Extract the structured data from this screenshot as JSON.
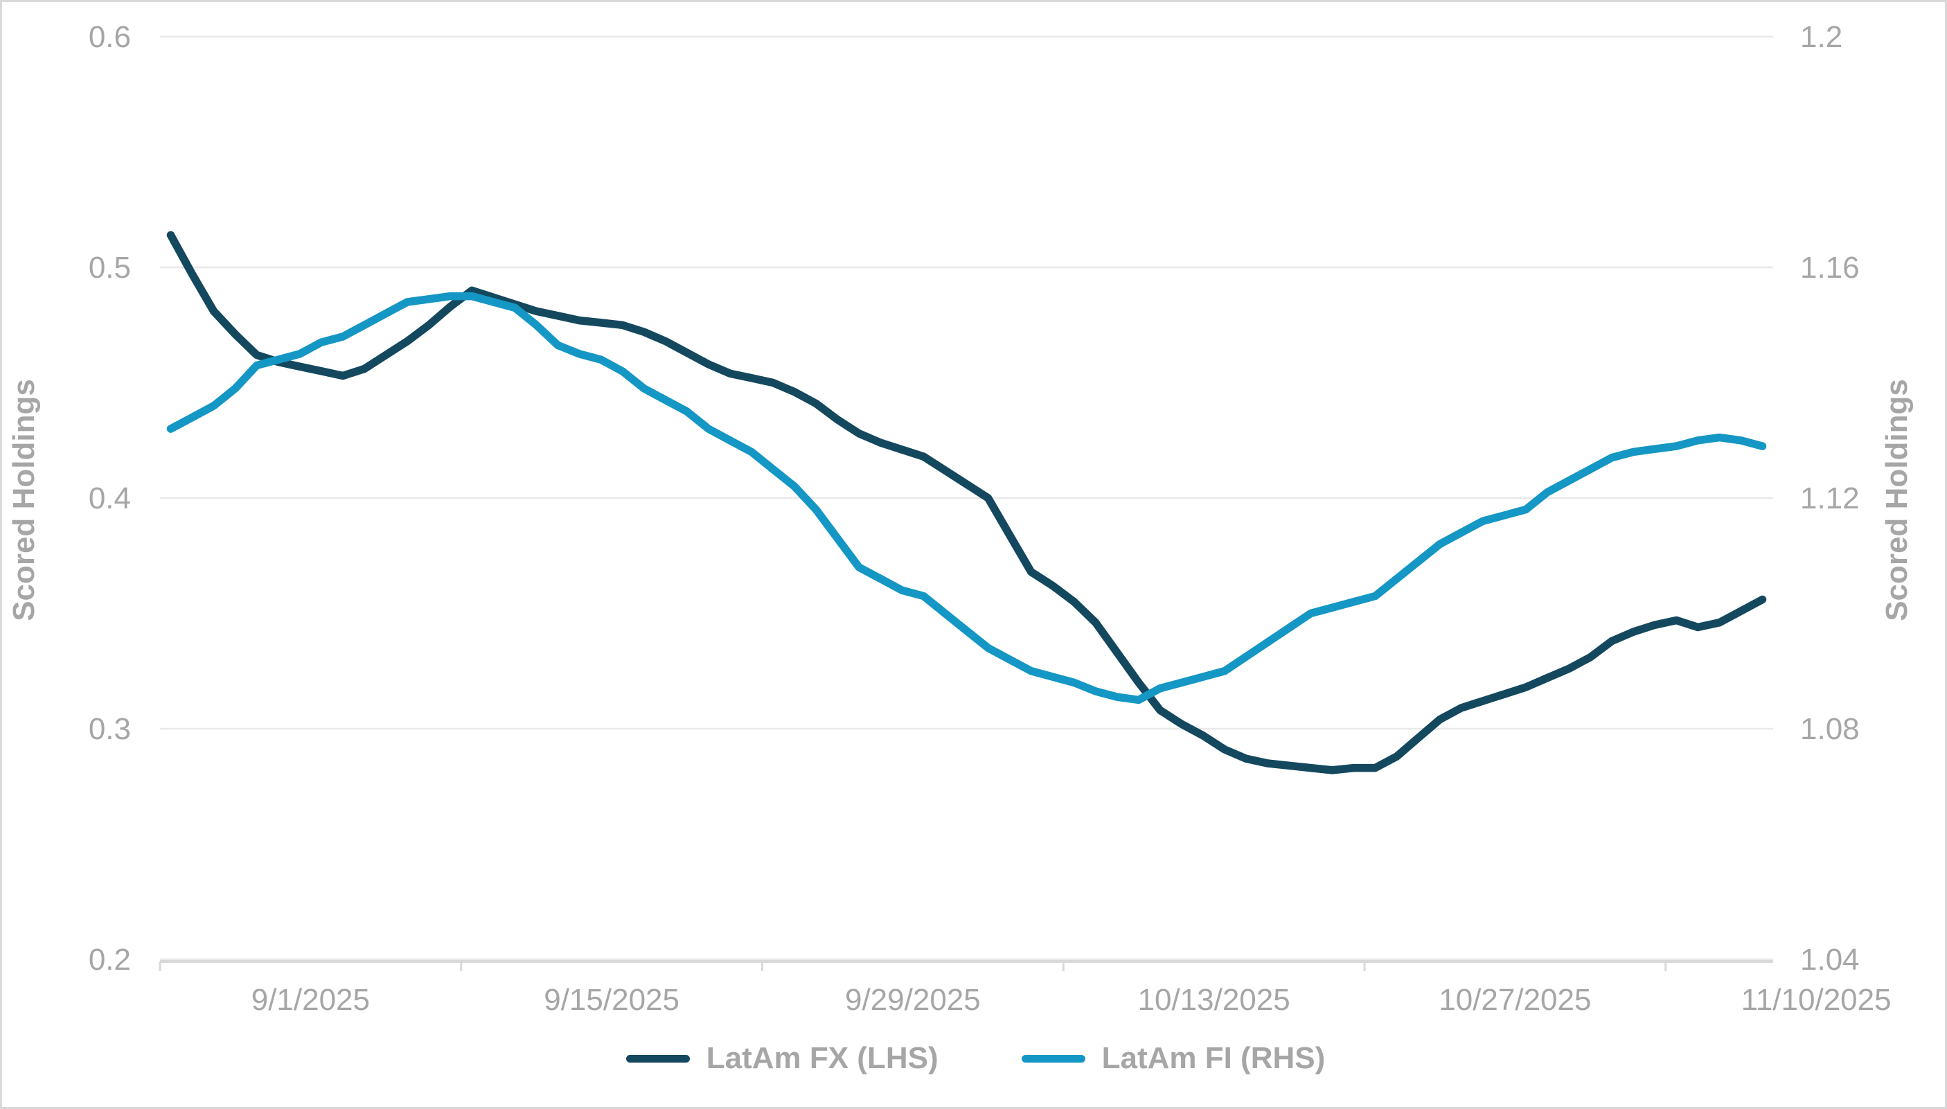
{
  "chart_data": {
    "type": "line",
    "title": "",
    "x": [
      "9/1/2025",
      "9/2/2025",
      "9/3/2025",
      "9/4/2025",
      "9/5/2025",
      "9/6/2025",
      "9/7/2025",
      "9/8/2025",
      "9/9/2025",
      "9/10/2025",
      "9/11/2025",
      "9/12/2025",
      "9/13/2025",
      "9/14/2025",
      "9/15/2025",
      "9/16/2025",
      "9/17/2025",
      "9/18/2025",
      "9/19/2025",
      "9/20/2025",
      "9/21/2025",
      "9/22/2025",
      "9/23/2025",
      "9/24/2025",
      "9/25/2025",
      "9/26/2025",
      "9/27/2025",
      "9/28/2025",
      "9/29/2025",
      "9/30/2025",
      "10/1/2025",
      "10/2/2025",
      "10/3/2025",
      "10/4/2025",
      "10/5/2025",
      "10/6/2025",
      "10/7/2025",
      "10/8/2025",
      "10/9/2025",
      "10/10/2025",
      "10/11/2025",
      "10/12/2025",
      "10/13/2025",
      "10/14/2025",
      "10/15/2025",
      "10/16/2025",
      "10/17/2025",
      "10/18/2025",
      "10/19/2025",
      "10/20/2025",
      "10/21/2025",
      "10/22/2025",
      "10/23/2025",
      "10/24/2025",
      "10/25/2025",
      "10/26/2025",
      "10/27/2025",
      "10/28/2025",
      "10/29/2025",
      "10/30/2025",
      "10/31/2025",
      "11/1/2025",
      "11/2/2025",
      "11/3/2025",
      "11/4/2025",
      "11/5/2025",
      "11/6/2025",
      "11/7/2025",
      "11/8/2025",
      "11/9/2025",
      "11/10/2025",
      "11/11/2025",
      "11/12/2025",
      "11/13/2025",
      "11/14/2025"
    ],
    "x_tick_labels": [
      "9/1/2025",
      "9/15/2025",
      "9/29/2025",
      "10/13/2025",
      "10/27/2025",
      "11/10/2025"
    ],
    "x_tick_day_index": [
      0,
      14,
      28,
      42,
      56,
      70
    ],
    "series": [
      {
        "name": "LatAm FX (LHS)",
        "axis": "left",
        "color": "#14485e",
        "values": [
          0.514,
          0.497,
          0.481,
          0.471,
          0.462,
          0.459,
          0.457,
          0.455,
          0.453,
          0.456,
          0.462,
          0.468,
          0.475,
          0.483,
          0.49,
          0.487,
          0.484,
          0.481,
          0.479,
          0.477,
          0.476,
          0.475,
          0.472,
          0.468,
          0.463,
          0.458,
          0.454,
          0.452,
          0.45,
          0.446,
          0.441,
          0.434,
          0.428,
          0.424,
          0.421,
          0.418,
          0.412,
          0.406,
          0.4,
          0.384,
          0.368,
          0.362,
          0.355,
          0.346,
          0.333,
          0.32,
          0.308,
          0.302,
          0.297,
          0.291,
          0.287,
          0.285,
          0.284,
          0.283,
          0.282,
          0.283,
          0.283,
          0.288,
          0.296,
          0.304,
          0.309,
          0.312,
          0.315,
          0.318,
          0.322,
          0.326,
          0.331,
          0.338,
          0.342,
          0.345,
          0.347,
          0.344,
          0.346,
          0.351,
          0.356
        ]
      },
      {
        "name": "LatAm FI (RHS)",
        "axis": "right",
        "color": "#1497c4",
        "values": [
          1.132,
          1.134,
          1.136,
          1.139,
          1.143,
          1.144,
          1.145,
          1.147,
          1.148,
          1.15,
          1.152,
          1.154,
          1.1545,
          1.155,
          1.155,
          1.154,
          1.153,
          1.15,
          1.1465,
          1.145,
          1.144,
          1.142,
          1.139,
          1.137,
          1.135,
          1.132,
          1.13,
          1.128,
          1.125,
          1.122,
          1.118,
          1.113,
          1.108,
          1.106,
          1.104,
          1.103,
          1.1,
          1.097,
          1.094,
          1.092,
          1.09,
          1.089,
          1.088,
          1.0865,
          1.0855,
          1.085,
          1.087,
          1.088,
          1.089,
          1.09,
          1.0925,
          1.095,
          1.0975,
          1.1,
          1.101,
          1.102,
          1.103,
          1.106,
          1.109,
          1.112,
          1.114,
          1.116,
          1.117,
          1.118,
          1.121,
          1.123,
          1.125,
          1.127,
          1.128,
          1.1285,
          1.129,
          1.13,
          1.1305,
          1.13,
          1.129
        ]
      }
    ],
    "left_axis": {
      "title": "Scored Holdings",
      "min": 0.2,
      "max": 0.6,
      "tick_labels": [
        "0.6",
        "0.5",
        "0.4",
        "0.3",
        "0.2"
      ],
      "tick_values": [
        0.6,
        0.5,
        0.4,
        0.3,
        0.2
      ]
    },
    "right_axis": {
      "title": "Scored Holdings",
      "min": 1.04,
      "max": 1.2,
      "tick_labels": [
        "1.2",
        "1.16",
        "1.12",
        "1.08",
        "1.04"
      ],
      "tick_values": [
        1.2,
        1.16,
        1.12,
        1.08,
        1.04
      ]
    },
    "grid": true,
    "legend_position": "bottom"
  },
  "legend": {
    "items": [
      {
        "label": "LatAm FX (LHS)",
        "color": "#14485e"
      },
      {
        "label": "LatAm FI (RHS)",
        "color": "#1497c4"
      }
    ]
  },
  "colors": {
    "series_fx": "#14485e",
    "series_fi": "#1497c4",
    "gridline": "#e8e8e8",
    "axis_line": "#d9d9d9",
    "tick": "#d9d9d9",
    "label_text": "#a6a6a6",
    "background": "#ffffff",
    "border": "#d9d9d9"
  }
}
